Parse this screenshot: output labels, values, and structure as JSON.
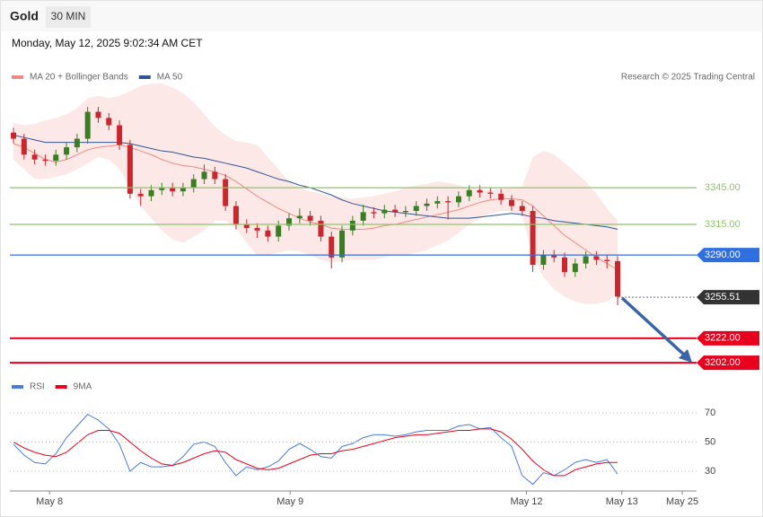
{
  "chart_data": {
    "type": "candlestick",
    "title": "Gold",
    "timeframe": "30 MIN",
    "subtitle": "Monday, May 12, 2025 9:02:34 AM CET",
    "source": "Research © 2025 Trading Central",
    "xlim": [
      -0.34,
      64.45
    ],
    "xticks": [
      {
        "value": 3.4,
        "label": "May 8"
      },
      {
        "value": 26.1,
        "label": "May 9"
      },
      {
        "value": 48.4,
        "label": "May 12"
      },
      {
        "value": 57.4,
        "label": "May 13"
      },
      {
        "value": 63.1,
        "label": "May 25"
      }
    ],
    "ylim": [
      3194,
      3425
    ],
    "up_color": "#3a7d22",
    "down_color": "#c8282d",
    "candles": {
      "open": [
        3390,
        3385,
        3372,
        3368,
        3367,
        3372,
        3378,
        3385,
        3407,
        3402,
        3396,
        3380,
        3340,
        3338,
        3343,
        3345,
        3342,
        3345,
        3352,
        3358,
        3352,
        3330,
        3315,
        3312,
        3310,
        3305,
        3314,
        3320,
        3322,
        3318,
        3305,
        3288,
        3310,
        3318,
        3325,
        3324,
        3327,
        3325,
        3326,
        3330,
        3332,
        3334,
        3333,
        3338,
        3343,
        3341,
        3340,
        3335,
        3330,
        3326,
        3282,
        3290,
        3288,
        3276,
        3283,
        3289,
        3286,
        3285
      ],
      "high": [
        3394,
        3389,
        3376,
        3372,
        3376,
        3382,
        3389,
        3411,
        3411,
        3406,
        3400,
        3384,
        3344,
        3347,
        3349,
        3349,
        3349,
        3356,
        3364,
        3362,
        3356,
        3334,
        3319,
        3316,
        3314,
        3318,
        3324,
        3328,
        3326,
        3322,
        3309,
        3314,
        3322,
        3331,
        3329,
        3331,
        3331,
        3330,
        3334,
        3336,
        3338,
        3338,
        3342,
        3347,
        3347,
        3345,
        3344,
        3339,
        3334,
        3330,
        3294,
        3294,
        3292,
        3287,
        3293,
        3293,
        3290,
        3289
      ],
      "low": [
        3381,
        3368,
        3364,
        3363,
        3363,
        3368,
        3374,
        3381,
        3398,
        3392,
        3376,
        3336,
        3330,
        3334,
        3339,
        3338,
        3338,
        3341,
        3348,
        3348,
        3326,
        3311,
        3308,
        3304,
        3301,
        3301,
        3310,
        3316,
        3314,
        3301,
        3279,
        3284,
        3306,
        3314,
        3320,
        3320,
        3321,
        3321,
        3322,
        3326,
        3328,
        3319,
        3329,
        3334,
        3337,
        3336,
        3331,
        3326,
        3322,
        3276,
        3278,
        3284,
        3272,
        3272,
        3279,
        3282,
        3279,
        3249
      ],
      "close": [
        3385,
        3372,
        3368,
        3367,
        3372,
        3378,
        3385,
        3407,
        3402,
        3396,
        3380,
        3340,
        3338,
        3343,
        3345,
        3342,
        3345,
        3352,
        3358,
        3352,
        3330,
        3315,
        3312,
        3310,
        3305,
        3314,
        3320,
        3322,
        3318,
        3305,
        3288,
        3310,
        3318,
        3325,
        3324,
        3327,
        3325,
        3326,
        3330,
        3332,
        3334,
        3333,
        3338,
        3343,
        3341,
        3340,
        3335,
        3330,
        3326,
        3282,
        3290,
        3288,
        3276,
        3283,
        3289,
        3286,
        3285,
        3256
      ]
    },
    "series": [
      {
        "name": "MA 20 + Bollinger Bands",
        "color": "#f08a80",
        "values": [
          3381,
          3378,
          3373,
          3368,
          3366,
          3368,
          3372,
          3376,
          3378,
          3379,
          3380,
          3378,
          3375,
          3372,
          3368,
          3365,
          3363,
          3362,
          3360,
          3358,
          3355,
          3350,
          3344,
          3338,
          3333,
          3328,
          3324,
          3320,
          3317,
          3315,
          3312,
          3311,
          3311,
          3311,
          3312,
          3314,
          3315,
          3317,
          3319,
          3321,
          3323,
          3325,
          3327,
          3330,
          3333,
          3335,
          3336,
          3336,
          3335,
          3330,
          3322,
          3314,
          3306,
          3300,
          3294,
          3288,
          3283,
          3278
        ],
        "upper": [
          3398,
          3396,
          3397,
          3400,
          3402,
          3405,
          3410,
          3418,
          3420,
          3418,
          3420,
          3424,
          3428,
          3430,
          3430,
          3427,
          3422,
          3415,
          3405,
          3395,
          3388,
          3383,
          3382,
          3380,
          3370,
          3360,
          3350,
          3345,
          3342,
          3340,
          3338,
          3337,
          3336,
          3337,
          3338,
          3340,
          3342,
          3345,
          3347,
          3348,
          3350,
          3349,
          3347,
          3345,
          3343,
          3343,
          3344,
          3345,
          3346,
          3370,
          3375,
          3372,
          3365,
          3358,
          3350,
          3340,
          3328,
          3318
        ],
        "lower": [
          3368,
          3360,
          3352,
          3352,
          3354,
          3356,
          3360,
          3365,
          3370,
          3368,
          3360,
          3345,
          3330,
          3320,
          3310,
          3303,
          3300,
          3305,
          3310,
          3318,
          3318,
          3312,
          3300,
          3290,
          3290,
          3292,
          3294,
          3293,
          3290,
          3286,
          3284,
          3285,
          3286,
          3286,
          3286,
          3288,
          3290,
          3290,
          3292,
          3294,
          3298,
          3302,
          3308,
          3315,
          3320,
          3324,
          3326,
          3326,
          3322,
          3290,
          3272,
          3262,
          3256,
          3252,
          3250,
          3250,
          3252,
          3258
        ]
      },
      {
        "name": "MA 50",
        "color": "#2f5597",
        "values": [
          3388,
          3386,
          3384,
          3382,
          3382,
          3382,
          3382,
          3382,
          3382,
          3382,
          3382,
          3381,
          3379,
          3377,
          3375,
          3374,
          3372,
          3370,
          3369,
          3367,
          3365,
          3363,
          3361,
          3358,
          3355,
          3352,
          3350,
          3347,
          3345,
          3342,
          3339,
          3335,
          3332,
          3330,
          3328,
          3326,
          3325,
          3324,
          3323,
          3322,
          3321,
          3320,
          3320,
          3320,
          3321,
          3322,
          3323,
          3324,
          3323,
          3321,
          3320,
          3318,
          3317,
          3316,
          3315,
          3314,
          3313,
          3311
        ]
      }
    ],
    "levels": [
      {
        "value": 3345,
        "label": "3345.00",
        "color": "#8cc46a",
        "line": "solid",
        "box": false
      },
      {
        "value": 3315,
        "label": "3315.00",
        "color": "#8cc46a",
        "line": "solid",
        "box": false
      },
      {
        "value": 3290,
        "label": "3290.00",
        "color": "#2f6fe0",
        "line": "solid",
        "box": true
      },
      {
        "value": 3255.51,
        "label": "3255.51",
        "color": "#333333",
        "line": "dotted",
        "box": true
      },
      {
        "value": 3222,
        "label": "3222.00",
        "color": "#e8001c",
        "line": "solid",
        "box": true
      },
      {
        "value": 3202,
        "label": "3202.00",
        "color": "#e8001c",
        "line": "solid",
        "box": true
      }
    ],
    "rsi": {
      "ylim": [
        17.7,
        82.3
      ],
      "yticks": [
        70,
        50,
        30
      ],
      "series": [
        {
          "name": "RSI",
          "color": "#4a7bd6",
          "values": [
            48.5,
            41,
            36,
            35,
            42,
            53,
            61,
            69,
            65,
            59,
            48.5,
            30,
            36,
            33,
            33,
            34,
            40,
            48.5,
            50,
            47,
            36,
            27,
            33,
            31,
            33,
            37,
            45,
            49,
            45,
            40,
            39,
            47,
            49,
            53,
            55,
            55,
            54,
            55,
            57,
            58,
            58,
            58,
            61,
            62,
            59,
            60,
            53,
            47,
            27,
            21,
            29,
            27,
            31,
            36,
            38,
            36,
            38,
            28
          ]
        },
        {
          "name": "9MA",
          "color": "#e8001c",
          "values": [
            50,
            46,
            43,
            41,
            40,
            43,
            49,
            55,
            58,
            58,
            56,
            50,
            44,
            39,
            35,
            34,
            36,
            39,
            42,
            44,
            43,
            38,
            35,
            32,
            31,
            32,
            35,
            38,
            41,
            42,
            42,
            44,
            45,
            47,
            49,
            51,
            53,
            54,
            55,
            55,
            56,
            57,
            58,
            58,
            59,
            59,
            57,
            52,
            45,
            37,
            31,
            27,
            27,
            31,
            33,
            35,
            36,
            36
          ]
        }
      ]
    }
  }
}
